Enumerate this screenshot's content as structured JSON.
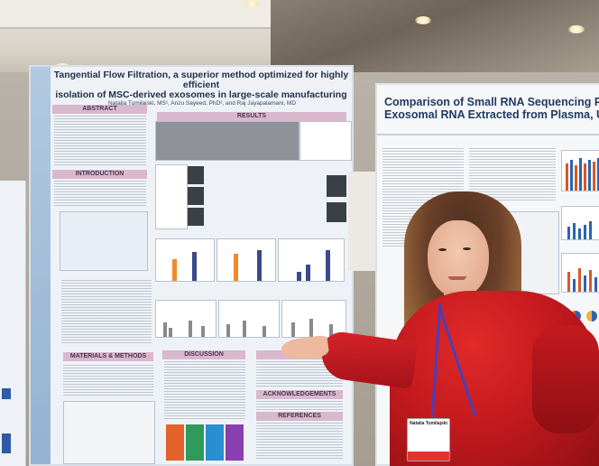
{
  "poster_main": {
    "title_line1": "Tangential Flow Filtration, a superior method optimized for highly efficient",
    "title_line2": "isolation of MSC-derived exosomes in large-scale manufacturing",
    "authors": "Natalia Tumiłajski, MS¹, Anzu Sayeed, PhD², and Raj Jayapalamani, MD",
    "sections": {
      "abstract": "ABSTRACT",
      "results": "RESULTS",
      "introduction": "INTRODUCTION",
      "materials": "MATERIALS & METHODS",
      "discussion": "DISCUSSION",
      "acknowledgements": "ACKNOWLEDGEMENTS",
      "references": "REFERENCES"
    }
  },
  "poster_right": {
    "title_line1": "Comparison of Small RNA Sequencing Pro",
    "title_line2": "Exosomal RNA Extracted from Plasma, Urine a"
  },
  "badge": {
    "name": "Natalia Tumilajski"
  },
  "colors": {
    "section_header": "#d9b7cc",
    "shirt": "#c41a1e",
    "lanyard": "#4b3fb8",
    "right_title": "#1f3b63"
  }
}
